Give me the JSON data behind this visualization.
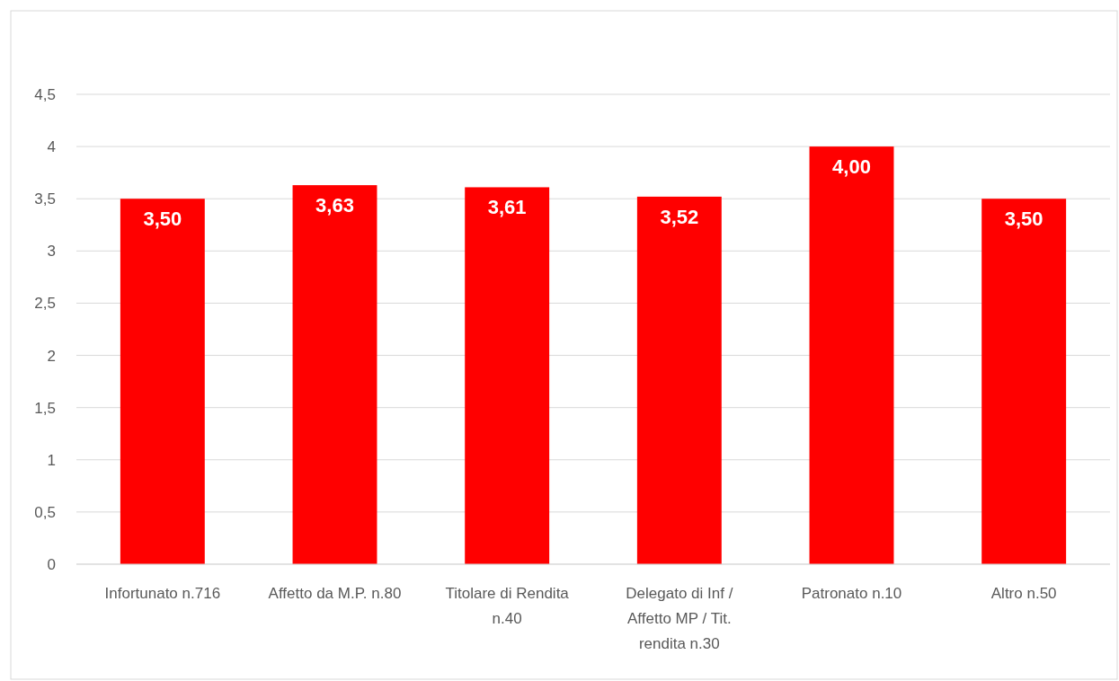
{
  "chart_data": {
    "type": "bar",
    "categories": [
      "Infortunato n.716",
      "Affetto da M.P. n.80",
      "Titolare di Rendita n.40",
      "Delegato di Inf / Affetto MP / Tit. rendita n.30",
      "Patronato n.10",
      "Altro n.50"
    ],
    "values": [
      3.5,
      3.63,
      3.61,
      3.52,
      4.0,
      3.5
    ],
    "value_labels": [
      "3,50",
      "3,63",
      "3,61",
      "3,52",
      "4,00",
      "3,50"
    ],
    "color": "#ff0000",
    "ylim": [
      0,
      4.5
    ],
    "yticks": [
      0,
      {
        "value": 0.5,
        "label": "0,5"
      },
      1,
      {
        "value": 1.5,
        "label": "1,5"
      },
      2,
      {
        "value": 2.5,
        "label": "2,5"
      },
      3,
      {
        "value": 3.5,
        "label": "3,5"
      },
      4,
      {
        "value": 4.5,
        "label": "4,5"
      }
    ],
    "grid": "y"
  }
}
